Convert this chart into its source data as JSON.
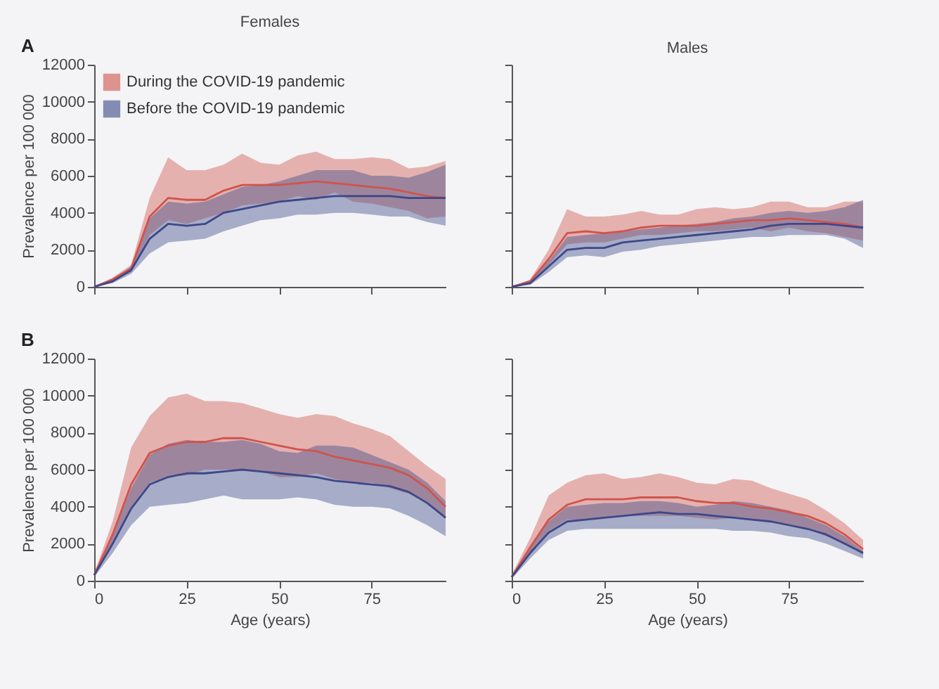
{
  "chart_data": [
    {
      "type": "line",
      "title": "Females",
      "ylabel": "Prevalence per 100 000",
      "annotations": [
        "A"
      ],
      "legend": "top left",
      "tick_labels": "y",
      "xlim": [
        0,
        95
      ],
      "xticks": [
        0,
        25,
        50,
        75
      ],
      "ylim": [
        0,
        12000
      ],
      "yticks": [
        0,
        2000,
        4000,
        6000,
        8000,
        10000,
        12000
      ],
      "x": [
        0,
        5,
        10,
        15,
        20,
        25,
        30,
        35,
        40,
        45,
        50,
        55,
        60,
        65,
        70,
        75,
        80,
        85,
        90,
        95
      ],
      "series": [
        {
          "name": "During the COVID-19 pandemic",
          "color": "#d0544c",
          "values": [
            0,
            400,
            1000,
            3800,
            4800,
            4700,
            4700,
            5200,
            5500,
            5500,
            5500,
            5600,
            5700,
            5600,
            5500,
            5400,
            5300,
            5100,
            4900,
            4800
          ],
          "lower": [
            0,
            300,
            800,
            2800,
            3600,
            3400,
            3700,
            4000,
            4400,
            4500,
            4600,
            4900,
            4700,
            5100,
            4600,
            4500,
            4300,
            4100,
            3700,
            3800
          ],
          "upper": [
            0,
            500,
            1200,
            4800,
            7000,
            6300,
            6300,
            6600,
            7200,
            6700,
            6600,
            7100,
            7300,
            6900,
            6900,
            7000,
            6900,
            6400,
            6500,
            6800
          ]
        },
        {
          "name": "Before the COVID-19 pandemic",
          "color": "#3c4888",
          "values": [
            0,
            300,
            900,
            2600,
            3400,
            3300,
            3400,
            4000,
            4200,
            4400,
            4600,
            4700,
            4800,
            4900,
            4900,
            4900,
            4900,
            4800,
            4800,
            4800
          ],
          "lower": [
            0,
            200,
            700,
            1800,
            2400,
            2500,
            2600,
            3000,
            3300,
            3600,
            3700,
            3900,
            3900,
            4000,
            4000,
            3900,
            3800,
            3800,
            3500,
            3300
          ],
          "upper": [
            0,
            400,
            1100,
            3700,
            4600,
            4500,
            4600,
            5000,
            5400,
            5500,
            5700,
            6000,
            6300,
            6300,
            6300,
            6000,
            6000,
            5900,
            6200,
            6600
          ]
        }
      ]
    },
    {
      "type": "line",
      "title": "Males",
      "tick_labels": false,
      "xlim": [
        0,
        95
      ],
      "xticks": [
        0,
        25,
        50,
        75
      ],
      "ylim": [
        0,
        12000
      ],
      "yticks": [
        0,
        2000,
        4000,
        6000,
        8000,
        10000,
        12000
      ],
      "x": [
        0,
        5,
        10,
        15,
        20,
        25,
        30,
        35,
        40,
        45,
        50,
        55,
        60,
        65,
        70,
        75,
        80,
        85,
        90,
        95
      ],
      "series": [
        {
          "color": "#d0544c",
          "values": [
            0,
            300,
            1500,
            2900,
            3000,
            2900,
            3000,
            3200,
            3300,
            3300,
            3300,
            3400,
            3500,
            3600,
            3600,
            3700,
            3600,
            3500,
            3400,
            3200
          ],
          "lower": [
            0,
            200,
            1200,
            2300,
            2400,
            2400,
            2600,
            2800,
            2800,
            2900,
            3000,
            3000,
            3100,
            3200,
            3000,
            3200,
            3000,
            2900,
            2700,
            2500
          ],
          "upper": [
            0,
            400,
            2000,
            4200,
            3800,
            3800,
            3900,
            4100,
            3900,
            3900,
            4200,
            4300,
            4200,
            4300,
            4600,
            4600,
            4300,
            4300,
            4600,
            4600
          ]
        },
        {
          "color": "#3c4888",
          "values": [
            0,
            200,
            1100,
            2000,
            2100,
            2100,
            2400,
            2500,
            2600,
            2700,
            2800,
            2900,
            3000,
            3100,
            3300,
            3400,
            3400,
            3400,
            3300,
            3200
          ],
          "lower": [
            0,
            100,
            800,
            1600,
            1700,
            1600,
            1900,
            2000,
            2200,
            2300,
            2400,
            2500,
            2600,
            2700,
            2700,
            2800,
            2800,
            2800,
            2600,
            2100
          ],
          "upper": [
            0,
            300,
            1400,
            2700,
            2800,
            2900,
            3000,
            3100,
            3200,
            3300,
            3400,
            3500,
            3700,
            3800,
            4000,
            4100,
            4000,
            4100,
            4300,
            4700
          ]
        }
      ]
    },
    {
      "type": "line",
      "xlabel": "Age (years)",
      "ylabel": "Prevalence per 100 000",
      "annotations": [
        "B"
      ],
      "xlim": [
        0,
        95
      ],
      "xticks": [
        0,
        25,
        50,
        75
      ],
      "ylim": [
        0,
        12000
      ],
      "yticks": [
        0,
        2000,
        4000,
        6000,
        8000,
        10000,
        12000
      ],
      "x": [
        0,
        5,
        10,
        15,
        20,
        25,
        30,
        35,
        40,
        45,
        50,
        55,
        60,
        65,
        70,
        75,
        80,
        85,
        90,
        95
      ],
      "series": [
        {
          "color": "#d0544c",
          "values": [
            300,
            2500,
            5200,
            6900,
            7300,
            7500,
            7500,
            7700,
            7700,
            7500,
            7300,
            7100,
            7000,
            6700,
            6500,
            6300,
            6100,
            5700,
            5000,
            4000
          ],
          "lower": [
            200,
            2000,
            4000,
            5300,
            5600,
            5700,
            6000,
            6000,
            6000,
            5900,
            5600,
            5600,
            5800,
            5500,
            5300,
            5300,
            5000,
            4700,
            4200,
            3400
          ],
          "upper": [
            400,
            3200,
            7200,
            8900,
            9900,
            10100,
            9700,
            9700,
            9600,
            9300,
            9000,
            8800,
            9000,
            8900,
            8500,
            8200,
            7800,
            7000,
            6200,
            5500
          ]
        },
        {
          "color": "#3c4888",
          "values": [
            300,
            2000,
            3900,
            5200,
            5600,
            5800,
            5800,
            5900,
            6000,
            5900,
            5800,
            5700,
            5600,
            5400,
            5300,
            5200,
            5100,
            4800,
            4200,
            3400
          ],
          "lower": [
            200,
            1500,
            3000,
            4000,
            4100,
            4200,
            4400,
            4600,
            4400,
            4400,
            4400,
            4500,
            4400,
            4100,
            4000,
            4000,
            3900,
            3500,
            3000,
            2400
          ],
          "upper": [
            400,
            2500,
            5000,
            6800,
            7400,
            7600,
            7500,
            7500,
            7600,
            7400,
            7000,
            6900,
            7300,
            7300,
            7200,
            6800,
            6400,
            6000,
            5300,
            4300
          ]
        }
      ]
    },
    {
      "type": "line",
      "xlabel": "Age (years)",
      "tick_labels": "x",
      "xlim": [
        0,
        95
      ],
      "xticks": [
        0,
        25,
        50,
        75
      ],
      "ylim": [
        0,
        12000
      ],
      "yticks": [
        0,
        2000,
        4000,
        6000,
        8000,
        10000,
        12000
      ],
      "x": [
        0,
        5,
        10,
        15,
        20,
        25,
        30,
        35,
        40,
        45,
        50,
        55,
        60,
        65,
        70,
        75,
        80,
        85,
        90,
        95
      ],
      "series": [
        {
          "color": "#d0544c",
          "values": [
            200,
            1800,
            3300,
            4100,
            4400,
            4400,
            4400,
            4500,
            4500,
            4500,
            4300,
            4200,
            4200,
            4000,
            3900,
            3700,
            3500,
            3100,
            2500,
            1700
          ],
          "lower": [
            100,
            1400,
            2700,
            3300,
            3300,
            3400,
            3500,
            3500,
            3500,
            3500,
            3400,
            3300,
            3400,
            3300,
            3200,
            3000,
            2800,
            2400,
            2000,
            1400
          ],
          "upper": [
            300,
            2300,
            4600,
            5300,
            5700,
            5800,
            5500,
            5600,
            5800,
            5600,
            5300,
            5200,
            5500,
            5400,
            5000,
            4700,
            4400,
            3800,
            3100,
            2200
          ]
        },
        {
          "color": "#3c4888",
          "values": [
            200,
            1500,
            2600,
            3200,
            3300,
            3400,
            3500,
            3600,
            3700,
            3600,
            3600,
            3500,
            3400,
            3300,
            3200,
            3000,
            2800,
            2500,
            2000,
            1500
          ],
          "lower": [
            100,
            1200,
            2200,
            2700,
            2800,
            2800,
            2800,
            2800,
            2800,
            2800,
            2800,
            2800,
            2700,
            2700,
            2600,
            2400,
            2300,
            2000,
            1600,
            1200
          ],
          "upper": [
            300,
            1800,
            3200,
            4000,
            4100,
            4200,
            4200,
            4300,
            4300,
            4200,
            4000,
            4100,
            4300,
            4200,
            4000,
            3800,
            3400,
            3000,
            2400,
            1600
          ]
        }
      ]
    }
  ]
}
